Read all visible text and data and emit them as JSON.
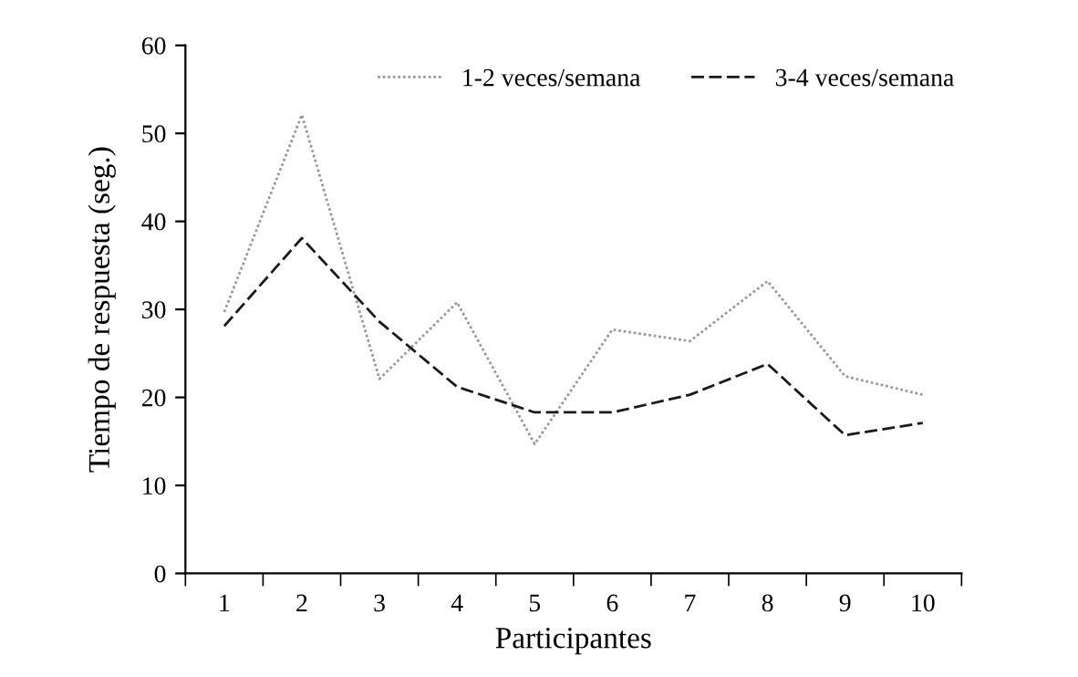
{
  "chart_data": {
    "type": "line",
    "xlabel": "Participantes",
    "ylabel": "Tiempo de respuesta (seg.)",
    "categories": [
      "1",
      "2",
      "3",
      "4",
      "5",
      "6",
      "7",
      "8",
      "9",
      "10"
    ],
    "series": [
      {
        "name": "1-2 veces/semana",
        "color": "#9a9a9a",
        "line_style": "dotted",
        "values": [
          29.7,
          52.1,
          22.1,
          30.8,
          14.7,
          27.7,
          26.4,
          33.2,
          22.4,
          20.3
        ]
      },
      {
        "name": "3-4 veces/semana",
        "color": "#1a1a1a",
        "line_style": "dashed",
        "values": [
          28.1,
          38.1,
          28.6,
          21.2,
          18.3,
          18.3,
          20.3,
          23.8,
          15.7,
          17.1
        ]
      }
    ],
    "ylim": [
      0,
      60
    ],
    "yticks": [
      0,
      10,
      20,
      30,
      40,
      50,
      60
    ],
    "grid": false,
    "legend": "top right",
    "marker": "none"
  }
}
